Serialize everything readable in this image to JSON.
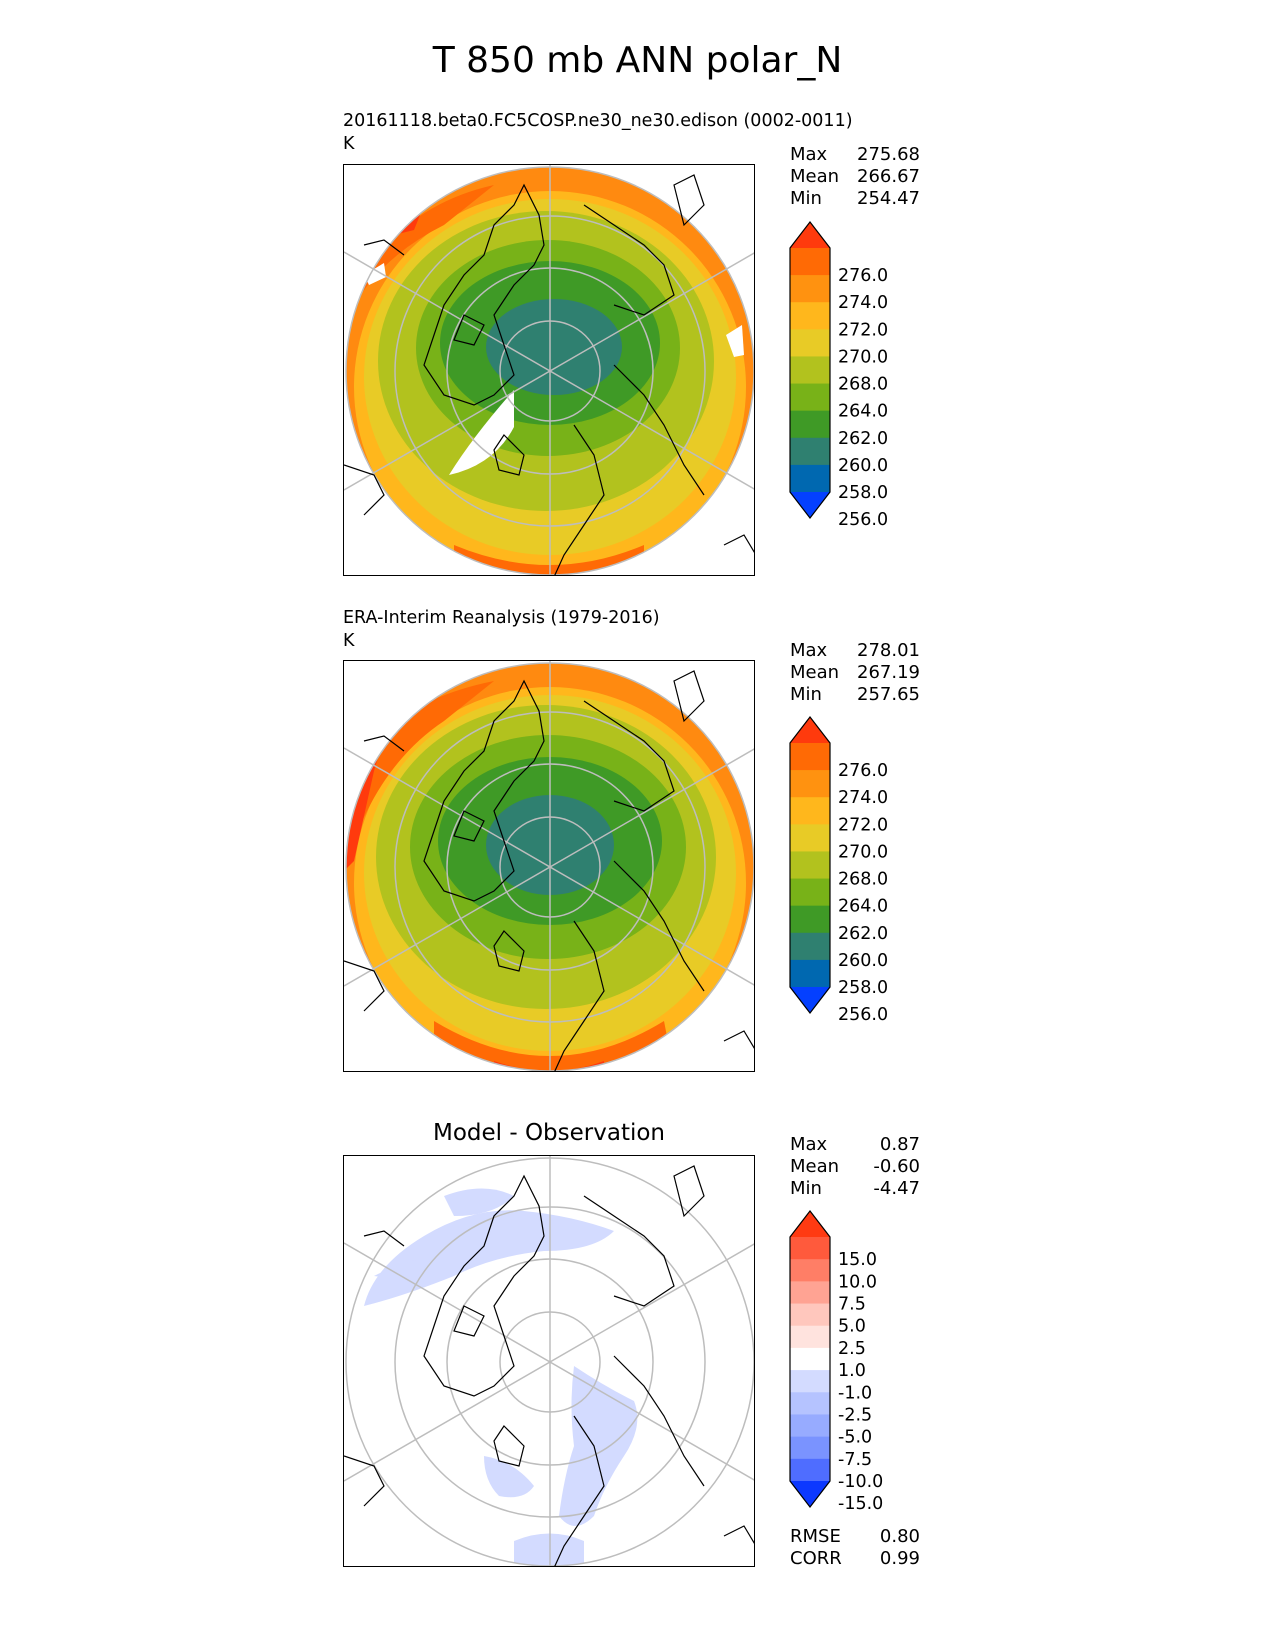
{
  "figure": {
    "title": "T 850 mb ANN polar_N"
  },
  "panels": [
    {
      "id": "test",
      "case_name": "20161118.beta0.FC5COSP.ne30_ne30.edison (0002-0011)",
      "units": "K",
      "title": "",
      "stats": [
        {
          "label": "Max",
          "value": "275.68"
        },
        {
          "label": "Mean",
          "value": "266.67"
        },
        {
          "label": "Min",
          "value": "254.47"
        }
      ],
      "colorbar": {
        "labels": [
          "276.0",
          "274.0",
          "272.0",
          "270.0",
          "268.0",
          "264.0",
          "262.0",
          "260.0",
          "258.0",
          "256.0"
        ],
        "colors": [
          "#ff3a0d",
          "#ff6a05",
          "#ff9210",
          "#ffb71c",
          "#e8cb26",
          "#b2c21e",
          "#78b218",
          "#3f9a26",
          "#2f8070",
          "#0068b0",
          "#0440ff"
        ]
      }
    },
    {
      "id": "reference",
      "case_name": "ERA-Interim Reanalysis (1979-2016)",
      "units": "K",
      "title": "",
      "stats": [
        {
          "label": "Max",
          "value": "278.01"
        },
        {
          "label": "Mean",
          "value": "267.19"
        },
        {
          "label": "Min",
          "value": "257.65"
        }
      ],
      "colorbar": {
        "labels": [
          "276.0",
          "274.0",
          "272.0",
          "270.0",
          "268.0",
          "264.0",
          "262.0",
          "260.0",
          "258.0",
          "256.0"
        ],
        "colors": [
          "#ff3a0d",
          "#ff6a05",
          "#ff9210",
          "#ffb71c",
          "#e8cb26",
          "#b2c21e",
          "#78b218",
          "#3f9a26",
          "#2f8070",
          "#0068b0",
          "#0440ff"
        ]
      }
    },
    {
      "id": "difference",
      "case_name": "",
      "units": "",
      "title": "Model - Observation",
      "stats": [
        {
          "label": "Max",
          "value": "0.87"
        },
        {
          "label": "Mean",
          "value": "-0.60"
        },
        {
          "label": "Min",
          "value": "-4.47"
        }
      ],
      "colorbar": {
        "labels": [
          "15.0",
          "10.0",
          "7.5",
          "5.0",
          "2.5",
          "1.0",
          "-1.0",
          "-2.5",
          "-5.0",
          "-7.5",
          "-10.0",
          "-15.0"
        ],
        "colors": [
          "#ff3a12",
          "#ff5a3c",
          "#ff7e66",
          "#ffa393",
          "#ffc7bd",
          "#ffe3de",
          "#ffffff",
          "#d3dbff",
          "#b5c3ff",
          "#97abff",
          "#7a93ff",
          "#4f6dff",
          "#0c38ff"
        ]
      },
      "metrics": [
        {
          "label": "RMSE",
          "value": "0.80"
        },
        {
          "label": "CORR",
          "value": "0.99"
        }
      ]
    }
  ],
  "chart_data": [
    {
      "type": "heatmap",
      "projection": "north polar stereographic",
      "variable": "T 850 mb",
      "units": "K",
      "levels": [
        256,
        258,
        260,
        262,
        264,
        268,
        270,
        272,
        274,
        276
      ],
      "min": 254.47,
      "mean": 266.67,
      "max": 275.68
    },
    {
      "type": "heatmap",
      "projection": "north polar stereographic",
      "variable": "T 850 mb",
      "units": "K",
      "levels": [
        256,
        258,
        260,
        262,
        264,
        268,
        270,
        272,
        274,
        276
      ],
      "min": 257.65,
      "mean": 267.19,
      "max": 278.01
    },
    {
      "type": "heatmap",
      "projection": "north polar stereographic",
      "levels": [
        -15,
        -10,
        -7.5,
        -5,
        -2.5,
        -1,
        1,
        2.5,
        5,
        7.5,
        10,
        15
      ],
      "min": -4.47,
      "mean": -0.6,
      "max": 0.87,
      "rmse": 0.8,
      "corr": 0.99
    }
  ]
}
